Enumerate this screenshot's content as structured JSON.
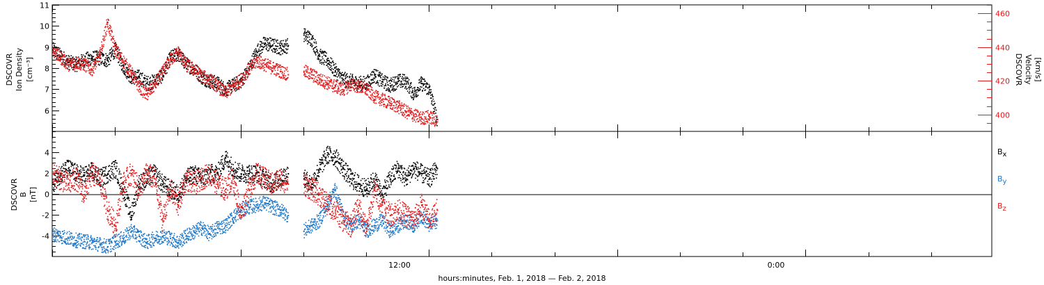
{
  "chart_data": [
    {
      "type": "scatter",
      "ylabel": [
        "DSCOVR",
        "Ion  Density",
        "[cm⁻³]"
      ],
      "ylabel_right": [
        "DSCOVR",
        "Velocity",
        "[km/s]"
      ],
      "ylim": [
        5,
        11
      ],
      "ylim_right": [
        390,
        465
      ],
      "yticks": [
        6,
        7,
        8,
        9,
        10,
        11
      ],
      "yticks_right": [
        400,
        420,
        440,
        460
      ],
      "grid": false,
      "series": [
        {
          "name": "Ion Density",
          "color": "#000000",
          "x": [
            0,
            0.5,
            1,
            1.5,
            2,
            2.5,
            3,
            3.5,
            4,
            4.5,
            5,
            5.5,
            6,
            6.5,
            7,
            7.5,
            8,
            8.5,
            9,
            9.5,
            10,
            10.5,
            11,
            11.5,
            12,
            12.5,
            13,
            13.5,
            14,
            14.5,
            15,
            15.5,
            16,
            16.5,
            17,
            17.5,
            18,
            18.5,
            19,
            19.5,
            20,
            20.5,
            21,
            21.5,
            22,
            22.5,
            23,
            23.5,
            24,
            24.5
          ],
          "y": [
            8.9,
            8.6,
            8.3,
            8.2,
            8.4,
            8.5,
            8.5,
            8.4,
            8.9,
            8.1,
            7.6,
            7.6,
            7.3,
            7.4,
            7.7,
            8.5,
            8.7,
            8.2,
            8.0,
            7.6,
            7.4,
            7.3,
            7.0,
            7.2,
            7.4,
            8.0,
            8.8,
            9.2,
            9.1,
            9.0,
            9.1,
            null,
            9.6,
            9.4,
            8.6,
            8.4,
            7.9,
            7.5,
            7.4,
            7.3,
            7.3,
            7.7,
            7.4,
            7.2,
            7.4,
            7.4,
            6.8,
            7.3,
            7.0,
            5.6
          ]
        },
        {
          "name": "Velocity",
          "color": "#e41a1c",
          "axis": "right",
          "x": [
            0,
            0.5,
            1,
            1.5,
            2,
            2.5,
            3,
            3.5,
            4,
            4.5,
            5,
            5.5,
            6,
            6.5,
            7,
            7.5,
            8,
            8.5,
            9,
            9.5,
            10,
            10.5,
            11,
            11.5,
            12,
            12.5,
            13,
            13.5,
            14,
            14.5,
            15,
            15.5,
            16,
            16.5,
            17,
            17.5,
            18,
            18.5,
            19,
            19.5,
            20,
            20.5,
            21,
            21.5,
            22,
            22.5,
            23,
            23.5,
            24,
            24.5
          ],
          "y": [
            438,
            434,
            430,
            431,
            430,
            427,
            435,
            455,
            439,
            432,
            425,
            417,
            412,
            418,
            425,
            433,
            437,
            430,
            427,
            423,
            421,
            417,
            413,
            417,
            421,
            427,
            432,
            430,
            428,
            426,
            424,
            null,
            426,
            424,
            421,
            419,
            417,
            415,
            418,
            417,
            415,
            411,
            409,
            407,
            405,
            402,
            400,
            398,
            399,
            396
          ]
        }
      ]
    },
    {
      "type": "scatter",
      "ylabel": [
        "DSCOVR",
        "B",
        "[nT]"
      ],
      "ylim": [
        -6,
        6
      ],
      "yticks": [
        -4,
        -2,
        0,
        2,
        4
      ],
      "grid": false,
      "legend_position": "right",
      "series": [
        {
          "name": "Bx",
          "color": "#000000",
          "x": [
            0,
            0.5,
            1,
            1.5,
            2,
            2.5,
            3,
            3.5,
            4,
            4.5,
            5,
            5.5,
            6,
            6.5,
            7,
            7.5,
            8,
            8.5,
            9,
            9.5,
            10,
            10.5,
            11,
            11.5,
            12,
            12.5,
            13,
            13.5,
            14,
            14.5,
            15,
            15.5,
            16,
            16.5,
            17,
            17.5,
            18,
            18.5,
            19,
            19.5,
            20,
            20.5,
            21,
            21.5,
            22,
            22.5,
            23,
            23.5,
            24,
            24.5
          ],
          "y": [
            1.0,
            2.0,
            2.5,
            2.0,
            1.8,
            2.2,
            1.5,
            2.0,
            2.5,
            0.5,
            -2.0,
            1.0,
            1.5,
            2.0,
            1.0,
            0.5,
            0.0,
            1.5,
            2.0,
            1.5,
            2.0,
            2.0,
            3.5,
            2.5,
            2.0,
            2.0,
            2.0,
            1.5,
            1.0,
            1.5,
            2.0,
            null,
            1.5,
            1.0,
            2.5,
            3.8,
            3.6,
            2.5,
            1.5,
            1.0,
            0.5,
            1.5,
            0.0,
            1.5,
            2.5,
            1.5,
            2.5,
            2.0,
            1.5,
            2.5
          ]
        },
        {
          "name": "By",
          "color": "#1f78c8",
          "x": [
            0,
            0.5,
            1,
            1.5,
            2,
            2.5,
            3,
            3.5,
            4,
            4.5,
            5,
            5.5,
            6,
            6.5,
            7,
            7.5,
            8,
            8.5,
            9,
            9.5,
            10,
            10.5,
            11,
            11.5,
            12,
            12.5,
            13,
            13.5,
            14,
            14.5,
            15,
            15.5,
            16,
            16.5,
            17,
            17.5,
            18,
            18.5,
            19,
            19.5,
            20,
            20.5,
            21,
            21.5,
            22,
            22.5,
            23,
            23.5,
            24,
            24.5
          ],
          "y": [
            -3.8,
            -4.0,
            -4.2,
            -4.4,
            -4.5,
            -4.6,
            -4.8,
            -5.0,
            -4.5,
            -4.2,
            -3.5,
            -4.0,
            -4.6,
            -4.2,
            -4.0,
            -4.2,
            -4.6,
            -4.0,
            -3.6,
            -3.2,
            -3.8,
            -3.2,
            -3.0,
            -2.2,
            -1.5,
            -1.2,
            -1.0,
            -0.8,
            -1.2,
            -1.5,
            -2.0,
            null,
            -3.5,
            -3.0,
            -2.5,
            -1.0,
            0.5,
            -2.0,
            -3.0,
            -2.5,
            -3.5,
            -3.0,
            -2.5,
            -3.5,
            -3.0,
            -2.5,
            -3.0,
            -2.0,
            -3.0,
            -2.5
          ]
        },
        {
          "name": "Bz",
          "color": "#e41a1c",
          "x": [
            0,
            0.5,
            1,
            1.5,
            2,
            2.5,
            3,
            3.5,
            4,
            4.5,
            5,
            5.5,
            6,
            6.5,
            7,
            7.5,
            8,
            8.5,
            9,
            9.5,
            10,
            10.5,
            11,
            11.5,
            12,
            12.5,
            13,
            13.5,
            14,
            14.5,
            15,
            15.5,
            16,
            16.5,
            17,
            17.5,
            18,
            18.5,
            19,
            19.5,
            20,
            20.5,
            21,
            21.5,
            22,
            22.5,
            23,
            23.5,
            24,
            24.5
          ],
          "y": [
            2.0,
            1.5,
            1.0,
            1.5,
            0.0,
            2.0,
            1.5,
            -1.5,
            -3.0,
            1.0,
            2.0,
            0.5,
            2.0,
            1.5,
            -2.5,
            0.5,
            -1.0,
            1.5,
            1.0,
            1.5,
            2.0,
            1.0,
            0.5,
            1.5,
            -2.0,
            0.5,
            2.0,
            1.5,
            1.0,
            1.5,
            1.0,
            null,
            1.0,
            0.5,
            0.0,
            -1.0,
            -1.5,
            -2.5,
            -3.0,
            -1.0,
            -3.5,
            0.5,
            -1.0,
            -2.0,
            -1.5,
            -2.0,
            -2.5,
            -1.0,
            -2.5,
            -1.5
          ]
        }
      ]
    }
  ],
  "legend": {
    "bx_base": "B",
    "bx_sub": "x",
    "by_base": "B",
    "by_sub": "y",
    "bz_base": "B",
    "bz_sub": "z"
  },
  "xaxis": {
    "tick_labels": [
      "12:00",
      "0:00"
    ],
    "xlabel": "hours:minutes, Feb.  1, 2018 — Feb.  2, 2018"
  },
  "colors": {
    "black": "#000000",
    "red": "#e41a1c",
    "blue": "#1f78c8"
  }
}
